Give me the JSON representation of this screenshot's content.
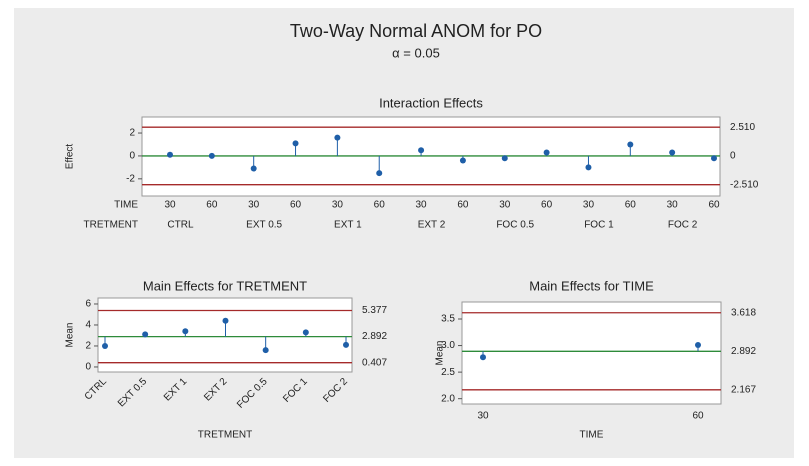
{
  "title": "Two-Way Normal ANOM for PO",
  "subtitle": "α = 0.05",
  "chart_data": [
    {
      "type": "anom",
      "title": "Interaction Effects",
      "ylabel": "Effect",
      "row_labels": [
        "TIME",
        "TRETMENT"
      ],
      "categories": [
        30,
        60,
        30,
        60,
        30,
        60,
        30,
        60,
        30,
        60,
        30,
        60,
        30,
        60
      ],
      "groups": [
        "CTRL",
        "EXT 0.5",
        "EXT 1",
        "EXT 2",
        "FOC 0.5",
        "FOC 1",
        "FOC 2"
      ],
      "values": [
        0.1,
        0.0,
        -1.1,
        1.1,
        1.6,
        -1.5,
        0.5,
        -0.4,
        -0.2,
        0.3,
        -1.0,
        1.0,
        0.3,
        -0.2
      ],
      "ylim": [
        -3.5,
        3.4
      ],
      "yticks": [
        -2,
        0,
        2
      ],
      "limits": [
        {
          "value": 2.51,
          "label": "2.510"
        },
        0,
        {
          "value": -2.51,
          "label": "-2.510"
        }
      ],
      "colors": {
        "points": "#1f5fa8",
        "center": "#2e8b3a",
        "limits": "#a52a2a"
      }
    },
    {
      "type": "anom",
      "title": "Main Effects for TRETMENT",
      "ylabel": "Mean",
      "xlabel": "TRETMENT",
      "categories": [
        "CTRL",
        "EXT 0.5",
        "EXT 1",
        "EXT 2",
        "FOC 0.5",
        "FOC 1",
        "FOC 2"
      ],
      "values": [
        2.0,
        3.1,
        3.4,
        4.4,
        1.6,
        3.3,
        2.1
      ],
      "ylim": [
        -0.48,
        6.57
      ],
      "yticks": [
        0,
        2,
        4,
        6
      ],
      "limits": [
        5.377,
        2.892,
        0.407
      ],
      "colors": {
        "points": "#1f5fa8",
        "center": "#2e8b3a",
        "limits": "#a52a2a"
      }
    },
    {
      "type": "anom",
      "title": "Main Effects for TIME",
      "ylabel": "Mean",
      "xlabel": "TIME",
      "categories": [
        30,
        60
      ],
      "values": [
        2.78,
        3.01
      ],
      "ylim": [
        1.9,
        3.82
      ],
      "yticks": [
        {
          "value": 2.0,
          "label": "2.0"
        },
        {
          "value": 2.5,
          "label": "2.5"
        },
        {
          "value": 3.0,
          "label": "3.0"
        },
        {
          "value": 3.5,
          "label": "3.5"
        }
      ],
      "limits": [
        3.618,
        2.892,
        2.167
      ],
      "colors": {
        "points": "#1f5fa8",
        "center": "#2e8b3a",
        "limits": "#a52a2a"
      }
    }
  ]
}
